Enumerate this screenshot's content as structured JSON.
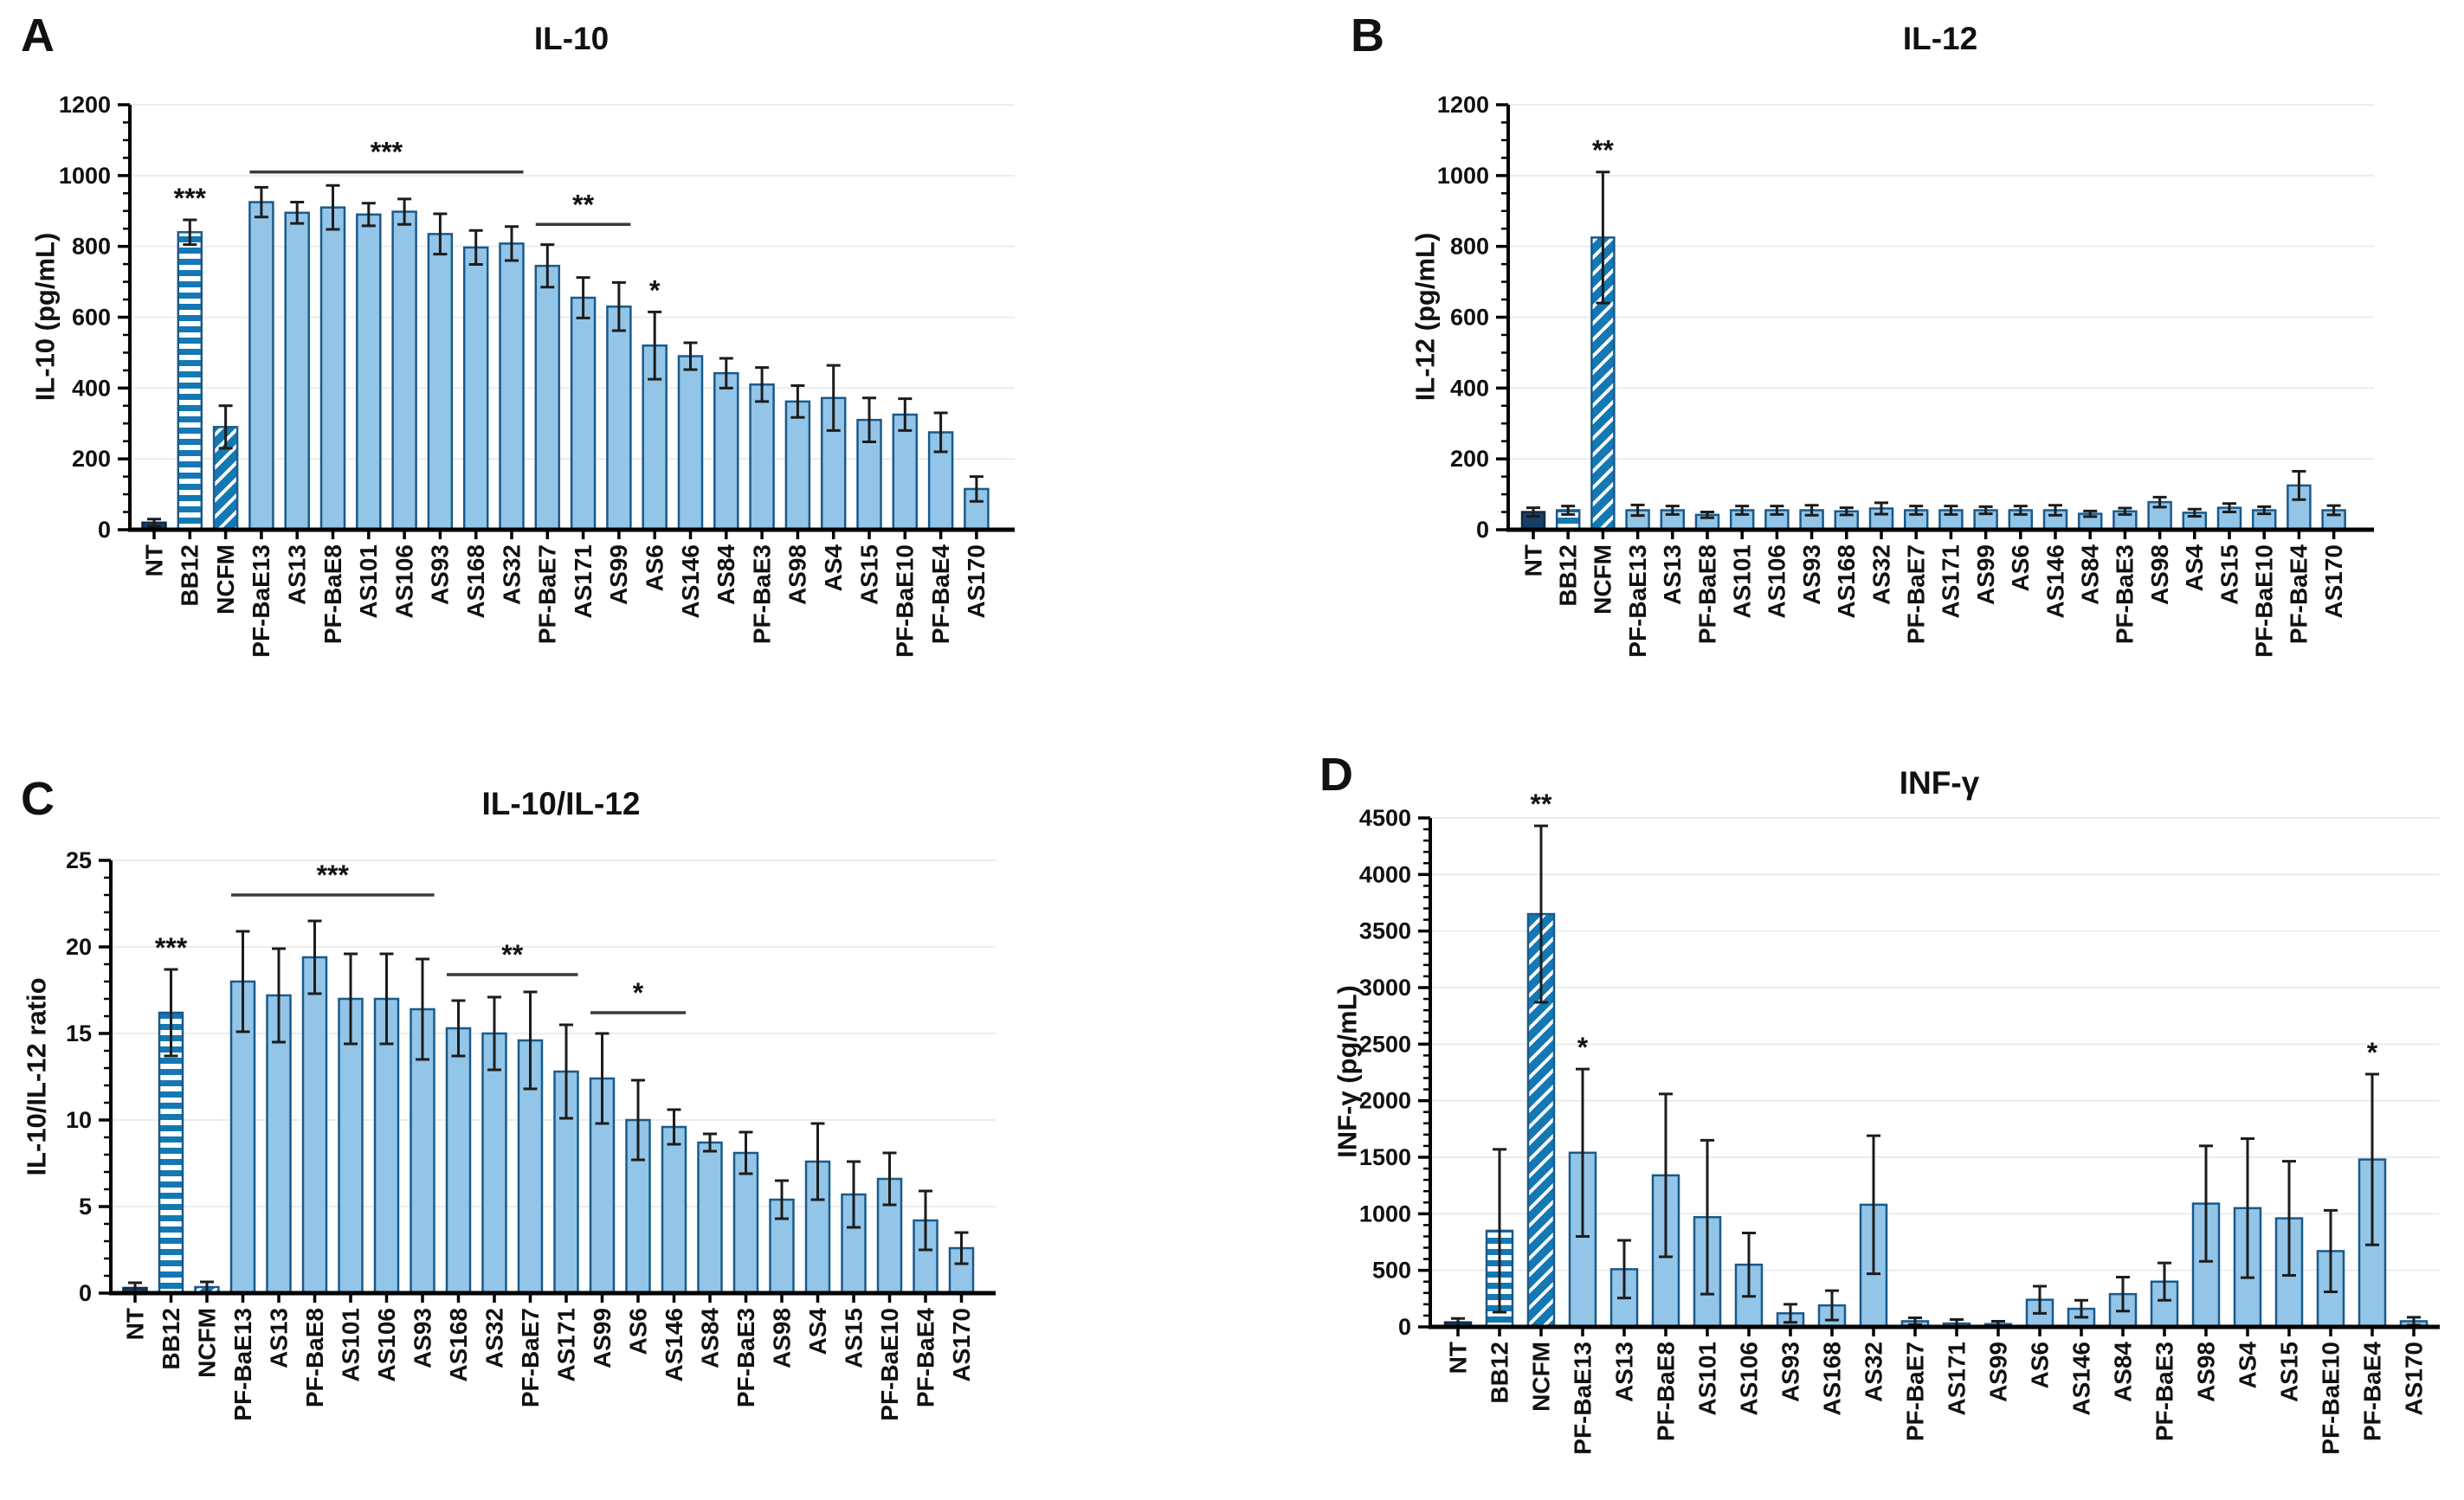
{
  "colors": {
    "bar_fill": "#92c5e8",
    "bar_stroke": "#1a5a8a",
    "dark_fill": "#173f66",
    "dark_stroke": "#0e2a45",
    "stripe_blue": "#1478b4",
    "grid": "#ececec",
    "axis": "#000000",
    "error_bar": "#1c1c1c",
    "bracket": "#3a3a3a"
  },
  "chart_data": [
    {
      "panel_label": "A",
      "type": "bar",
      "title": "IL-10",
      "ylabel": "IL-10 (pg/mL)",
      "ylim": [
        0,
        1200
      ],
      "ytick_step": 200,
      "minor_ticks_per_interval": 3,
      "grid": true,
      "legend": null,
      "categories": [
        "NT",
        "BB12",
        "NCFM",
        "PF-BaE13",
        "AS13",
        "PF-BaE8",
        "AS101",
        "AS106",
        "AS93",
        "AS168",
        "AS32",
        "PF-BaE7",
        "AS171",
        "AS99",
        "AS6",
        "AS146",
        "AS84",
        "PF-BaE3",
        "AS98",
        "AS4",
        "AS15",
        "PF-BaE10",
        "PF-BaE4",
        "AS170"
      ],
      "values": [
        20,
        840,
        290,
        925,
        895,
        910,
        890,
        898,
        835,
        797,
        808,
        745,
        655,
        630,
        520,
        490,
        442,
        410,
        362,
        372,
        310,
        325,
        275,
        115
      ],
      "errors": [
        10,
        35,
        60,
        42,
        30,
        62,
        32,
        36,
        57,
        48,
        48,
        60,
        57,
        68,
        95,
        38,
        42,
        48,
        45,
        92,
        62,
        45,
        55,
        35
      ],
      "bar_styles": [
        "dark",
        "hstripes",
        "dstripes",
        "solid",
        "solid",
        "solid",
        "solid",
        "solid",
        "solid",
        "solid",
        "solid",
        "solid",
        "solid",
        "solid",
        "solid",
        "solid",
        "solid",
        "solid",
        "solid",
        "solid",
        "solid",
        "solid",
        "solid",
        "solid"
      ],
      "sig_points": [
        {
          "index": 1,
          "text": "***"
        },
        {
          "index": 14,
          "text": "*"
        }
      ],
      "sig_brackets": [
        {
          "from": 3,
          "to": 10,
          "text": "***",
          "y": 1010
        },
        {
          "from": 11,
          "to": 13,
          "text": "**",
          "y": 862
        }
      ]
    },
    {
      "panel_label": "B",
      "type": "bar",
      "title": "IL-12",
      "ylabel": "IL-12 (pg/mL)",
      "ylim": [
        0,
        1200
      ],
      "ytick_step": 200,
      "minor_ticks_per_interval": 3,
      "grid": true,
      "legend": null,
      "categories": [
        "NT",
        "BB12",
        "NCFM",
        "PF-BaE13",
        "AS13",
        "PF-BaE8",
        "AS101",
        "AS106",
        "AS93",
        "AS168",
        "AS32",
        "PF-BaE7",
        "AS171",
        "AS99",
        "AS6",
        "AS146",
        "AS84",
        "PF-BaE3",
        "AS98",
        "AS4",
        "AS15",
        "PF-BaE10",
        "PF-BaE4",
        "AS170"
      ],
      "values": [
        50,
        55,
        825,
        55,
        55,
        42,
        55,
        55,
        55,
        52,
        60,
        55,
        55,
        55,
        55,
        55,
        45,
        52,
        78,
        48,
        62,
        55,
        125,
        55
      ],
      "errors": [
        12,
        12,
        185,
        15,
        12,
        8,
        12,
        12,
        14,
        10,
        16,
        12,
        12,
        10,
        12,
        14,
        8,
        9,
        14,
        10,
        12,
        10,
        40,
        13
      ],
      "bar_styles": [
        "dark",
        "hstripes",
        "dstripes",
        "solid",
        "solid",
        "solid",
        "solid",
        "solid",
        "solid",
        "solid",
        "solid",
        "solid",
        "solid",
        "solid",
        "solid",
        "solid",
        "solid",
        "solid",
        "solid",
        "solid",
        "solid",
        "solid",
        "solid",
        "solid"
      ],
      "sig_points": [
        {
          "index": 2,
          "text": "**"
        }
      ],
      "sig_brackets": []
    },
    {
      "panel_label": "C",
      "type": "bar",
      "title": "IL-10/IL-12",
      "ylabel": "IL-10/IL-12 ratio",
      "ylim": [
        0,
        25
      ],
      "ytick_step": 5,
      "minor_ticks_per_interval": 4,
      "grid": true,
      "legend": null,
      "categories": [
        "NT",
        "BB12",
        "NCFM",
        "PF-BaE13",
        "AS13",
        "PF-BaE8",
        "AS101",
        "AS106",
        "AS93",
        "AS168",
        "AS32",
        "PF-BaE7",
        "AS171",
        "AS99",
        "AS6",
        "AS146",
        "AS84",
        "PF-BaE3",
        "AS98",
        "AS4",
        "AS15",
        "PF-BaE10",
        "PF-BaE4",
        "AS170"
      ],
      "values": [
        0.3,
        16.2,
        0.35,
        18.0,
        17.2,
        19.4,
        17.0,
        17.0,
        16.4,
        15.3,
        15.0,
        14.6,
        12.8,
        12.4,
        10.0,
        9.6,
        8.7,
        8.1,
        5.4,
        7.6,
        5.7,
        6.6,
        4.2,
        2.6
      ],
      "errors": [
        0.3,
        2.5,
        0.3,
        2.9,
        2.7,
        2.1,
        2.6,
        2.6,
        2.9,
        1.6,
        2.1,
        2.8,
        2.7,
        2.6,
        2.3,
        1.0,
        0.5,
        1.2,
        1.1,
        2.2,
        1.9,
        1.5,
        1.7,
        0.9
      ],
      "bar_styles": [
        "dark",
        "hstripes",
        "dstripes",
        "solid",
        "solid",
        "solid",
        "solid",
        "solid",
        "solid",
        "solid",
        "solid",
        "solid",
        "solid",
        "solid",
        "solid",
        "solid",
        "solid",
        "solid",
        "solid",
        "solid",
        "solid",
        "solid",
        "solid",
        "solid"
      ],
      "sig_points": [
        {
          "index": 1,
          "text": "***"
        }
      ],
      "sig_brackets": [
        {
          "from": 3,
          "to": 8,
          "text": "***",
          "y": 23.0
        },
        {
          "from": 9,
          "to": 12,
          "text": "**",
          "y": 18.4
        },
        {
          "from": 13,
          "to": 15,
          "text": "*",
          "y": 16.2
        }
      ]
    },
    {
      "panel_label": "D",
      "type": "bar",
      "title": "INF-γ",
      "ylabel": "INF-γ (pg/mL)",
      "ylim": [
        0,
        4500
      ],
      "ytick_step": 500,
      "minor_ticks_per_interval": 4,
      "grid": true,
      "legend": null,
      "categories": [
        "NT",
        "BB12",
        "NCFM",
        "PF-BaE13",
        "AS13",
        "PF-BaE8",
        "AS101",
        "AS106",
        "AS93",
        "AS168",
        "AS32",
        "PF-BaE7",
        "AS171",
        "AS99",
        "AS6",
        "AS146",
        "AS84",
        "PF-BaE3",
        "AS98",
        "AS4",
        "AS15",
        "PF-BaE10",
        "PF-BaE4",
        "AS170"
      ],
      "values": [
        40,
        850,
        3650,
        1540,
        510,
        1340,
        970,
        550,
        120,
        190,
        1080,
        50,
        30,
        25,
        240,
        160,
        290,
        400,
        1090,
        1050,
        960,
        670,
        1480,
        50
      ],
      "errors": [
        35,
        720,
        780,
        740,
        255,
        720,
        680,
        280,
        80,
        130,
        610,
        30,
        35,
        25,
        120,
        75,
        150,
        165,
        510,
        615,
        505,
        360,
        755,
        35
      ],
      "bar_styles": [
        "dark",
        "hstripes",
        "dstripes",
        "solid",
        "solid",
        "solid",
        "solid",
        "solid",
        "solid",
        "solid",
        "solid",
        "solid",
        "solid",
        "solid",
        "solid",
        "solid",
        "solid",
        "solid",
        "solid",
        "solid",
        "solid",
        "solid",
        "solid",
        "solid"
      ],
      "sig_points": [
        {
          "index": 2,
          "text": "**"
        },
        {
          "index": 3,
          "text": "*"
        },
        {
          "index": 22,
          "text": "*"
        }
      ],
      "sig_brackets": []
    }
  ]
}
